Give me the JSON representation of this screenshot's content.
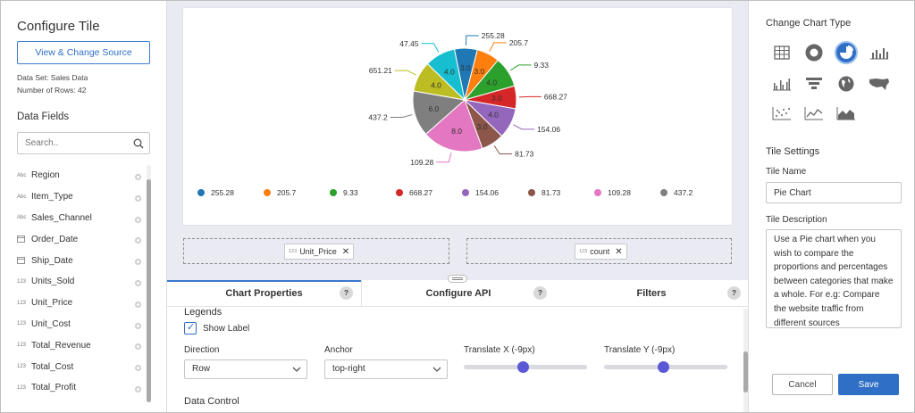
{
  "left": {
    "title": "Configure Tile",
    "view_source_label": "View & Change Source",
    "data_set": "Data Set: Sales Data",
    "rows": "Number of Rows: 42",
    "fields_title": "Data Fields",
    "search_placeholder": "Search..",
    "fields": [
      {
        "type": "Abc",
        "name": "Region"
      },
      {
        "type": "Abc",
        "name": "Item_Type"
      },
      {
        "type": "Abc",
        "name": "Sales_Channel"
      },
      {
        "type": "cal",
        "name": "Order_Date"
      },
      {
        "type": "cal",
        "name": "Ship_Date"
      },
      {
        "type": "123",
        "name": "Units_Sold"
      },
      {
        "type": "123",
        "name": "Unit_Price"
      },
      {
        "type": "123",
        "name": "Unit_Cost"
      },
      {
        "type": "123",
        "name": "Total_Revenue"
      },
      {
        "type": "123",
        "name": "Total_Cost"
      },
      {
        "type": "123",
        "name": "Total_Profit"
      }
    ]
  },
  "center": {
    "dims": [
      {
        "type": "123",
        "name": "Unit_Price"
      }
    ],
    "measures": [
      {
        "type": "123",
        "name": "count"
      }
    ],
    "tabs": [
      "Chart Properties",
      "Configure API",
      "Filters"
    ],
    "help": "?",
    "legends": "Legends",
    "show_label": "Show Label",
    "direction_label": "Direction",
    "direction_value": "Row",
    "anchor_label": "Anchor",
    "anchor_value": "top-right",
    "translate_x": "Translate X (-9px)",
    "translate_y": "Translate Y (-9px)",
    "data_control": "Data Control"
  },
  "chart_data": {
    "type": "pie",
    "labels": [
      "255.28",
      "205.7",
      "9.33",
      "668.27",
      "154.06",
      "81.73",
      "109.28",
      "437.2",
      "651.21",
      "47.45"
    ],
    "values": [
      3.0,
      3.0,
      4.0,
      3.0,
      4.0,
      3.0,
      8.0,
      6.0,
      4.0,
      4.0
    ],
    "colors": [
      "#1f77b4",
      "#ff7f0e",
      "#2ca02c",
      "#d62728",
      "#9467bd",
      "#8c564b",
      "#e377c2",
      "#7f7f7f",
      "#bcbd22",
      "#17becf"
    ],
    "legend": [
      "255.28",
      "205.7",
      "9.33",
      "668.27",
      "154.06",
      "81.73",
      "109.28",
      "437.2"
    ]
  },
  "right": {
    "change_type": "Change Chart Type",
    "chart_types": [
      "table",
      "donut",
      "pie",
      "bar",
      "grouped-bar",
      "funnel",
      "globe",
      "us-map",
      "scatter",
      "line",
      "area"
    ],
    "selected": "pie",
    "settings": "Tile Settings",
    "name_label": "Tile Name",
    "name_value": "Pie Chart",
    "desc_label": "Tile Description",
    "desc_value": "Use a Pie chart when you wish to compare the proportions and percentages between categories that make a whole. For e.g: Compare the website traffic from different sources",
    "cancel": "Cancel",
    "save": "Save",
    "accent": "#2f6fc6"
  }
}
